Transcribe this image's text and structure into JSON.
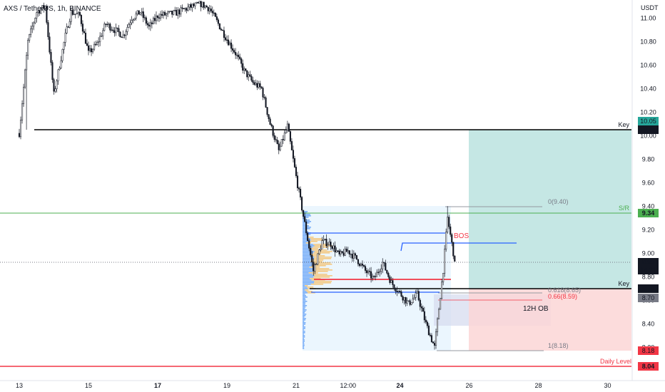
{
  "header": {
    "title": "AXS / TetherUS, 1h, BINANCE"
  },
  "axis": {
    "currency": "USDT"
  },
  "colors": {
    "up": "#131722",
    "down": "#131722",
    "bg": "#ffffff",
    "key_line": "#000000",
    "sr_line": "#4caf50",
    "daily_line": "#f23645",
    "tp_zone": "#b2dfdb",
    "sl_zone": "#fcd6d6",
    "range_fill": "#e3f2fd",
    "ob_fill": "#d7dcef",
    "bos_line": "#2962ff",
    "bos_text": "#f23645",
    "vp_blue": "#5b9cf6",
    "vp_orange": "#f5c16c",
    "fib_line": "#9598a1",
    "label_teal": "#26a69a",
    "label_green": "#4caf50",
    "label_dark": "#131722",
    "label_grey": "#787b86",
    "label_red": "#f23645"
  },
  "annotations": {
    "key_upper": "Key",
    "key_lower": "Key",
    "sr": "S/R",
    "daily": "Daily Level",
    "bos": "BOS",
    "ob": "12H OB",
    "fib_0": "0(9.40)",
    "fib_618": "0.618(8.65)",
    "fib_66": "0.66(8.59)",
    "fib_1": "1(8.18)"
  },
  "price_labels": {
    "position_top": "10.05",
    "key_upper": "10.05",
    "sr": "9.34",
    "current": "8.93",
    "countdown": "14:21",
    "key_lower": "8.70",
    "position_entry": "8.70",
    "stop": "8.18",
    "daily": "8.04"
  },
  "chart_data": {
    "type": "candlestick",
    "title": "AXS / TetherUS, 1h, BINANCE",
    "y_unit": "USDT",
    "ylim": [
      7.98,
      11.15
    ],
    "y_ticks": [
      "11.00",
      "10.80",
      "10.60",
      "10.40",
      "10.20",
      "10.00",
      "9.80",
      "9.60",
      "9.40",
      "9.20",
      "9.00",
      "8.80",
      "8.60",
      "8.40",
      "8.20"
    ],
    "x_ticks": [
      "13",
      "15",
      "17",
      "19",
      "21",
      "12:00",
      "24",
      "26",
      "28",
      "30"
    ],
    "x_ticks_bold": [
      "17",
      "24"
    ],
    "levels": [
      {
        "label": "Key",
        "value": 10.05
      },
      {
        "label": "S/R",
        "value": 9.34
      },
      {
        "label": "Key",
        "value": 8.7
      },
      {
        "label": "Daily Level",
        "value": 8.04
      }
    ],
    "fibonacci": [
      {
        "label": "0(9.40)",
        "value": 9.4
      },
      {
        "label": "0.618(8.65)",
        "value": 8.65
      },
      {
        "label": "0.66(8.59)",
        "value": 8.59
      },
      {
        "label": "1(8.18)",
        "value": 8.18
      }
    ],
    "position": {
      "entry": 8.7,
      "target": 10.05,
      "stop": 8.18,
      "start": "25 12:00"
    },
    "current_price": 8.93,
    "price_path": [
      [
        "13 00:00",
        10.02
      ],
      [
        "13 06:00",
        10.8
      ],
      [
        "13 12:00",
        11.05
      ],
      [
        "13 18:00",
        11.1
      ],
      [
        "14 00:00",
        10.35
      ],
      [
        "14 04:00",
        10.6
      ],
      [
        "14 08:00",
        10.85
      ],
      [
        "14 12:00",
        11.05
      ],
      [
        "14 18:00",
        11.02
      ],
      [
        "15 00:00",
        10.7
      ],
      [
        "15 06:00",
        10.78
      ],
      [
        "15 12:00",
        10.95
      ],
      [
        "15 18:00",
        10.9
      ],
      [
        "16 00:00",
        10.85
      ],
      [
        "16 06:00",
        11.0
      ],
      [
        "16 12:00",
        11.05
      ],
      [
        "16 18:00",
        10.92
      ],
      [
        "17 00:00",
        11.02
      ],
      [
        "17 12:00",
        11.04
      ],
      [
        "18 00:00",
        11.1
      ],
      [
        "18 06:00",
        11.12
      ],
      [
        "18 12:00",
        11.08
      ],
      [
        "18 18:00",
        10.95
      ],
      [
        "19 00:00",
        10.82
      ],
      [
        "19 06:00",
        10.7
      ],
      [
        "19 12:00",
        10.55
      ],
      [
        "19 18:00",
        10.45
      ],
      [
        "20 00:00",
        10.4
      ],
      [
        "20 06:00",
        10.1
      ],
      [
        "20 12:00",
        9.87
      ],
      [
        "20 18:00",
        10.08
      ],
      [
        "21 00:00",
        9.65
      ],
      [
        "21 06:00",
        9.25
      ],
      [
        "21 12:00",
        8.85
      ],
      [
        "21 18:00",
        9.1
      ],
      [
        "22 00:00",
        9.08
      ],
      [
        "22 06:00",
        8.98
      ],
      [
        "22 12:00",
        9.02
      ],
      [
        "22 18:00",
        8.95
      ],
      [
        "23 00:00",
        8.85
      ],
      [
        "23 06:00",
        8.78
      ],
      [
        "23 12:00",
        8.92
      ],
      [
        "23 18:00",
        8.75
      ],
      [
        "24 00:00",
        8.66
      ],
      [
        "24 06:00",
        8.57
      ],
      [
        "24 12:00",
        8.65
      ],
      [
        "24 18:00",
        8.4
      ],
      [
        "25 00:00",
        8.2
      ],
      [
        "25 06:00",
        8.86
      ],
      [
        "25 09:00",
        9.3
      ],
      [
        "25 12:00",
        9.08
      ],
      [
        "25 14:00",
        8.93
      ]
    ]
  }
}
